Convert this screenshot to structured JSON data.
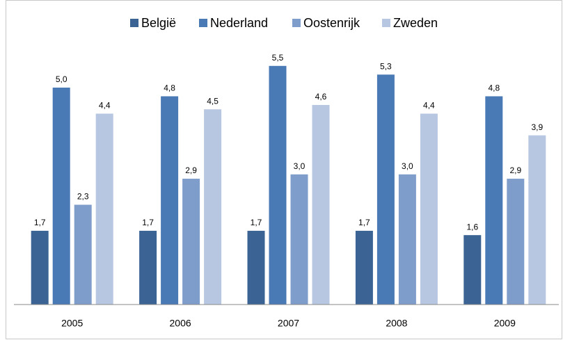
{
  "chart_data": {
    "type": "bar",
    "categories": [
      "2005",
      "2006",
      "2007",
      "2008",
      "2009"
    ],
    "series": [
      {
        "name": "België",
        "color": "#3b6394",
        "values": [
          1.7,
          1.7,
          1.7,
          1.7,
          1.6
        ],
        "value_labels": [
          "1,7",
          "1,7",
          "1,7",
          "1,7",
          "1,6"
        ]
      },
      {
        "name": "Nederland",
        "color": "#4a7ab6",
        "values": [
          5.0,
          4.8,
          5.5,
          5.3,
          4.8
        ],
        "value_labels": [
          "5,0",
          "4,8",
          "5,5",
          "5,3",
          "4,8"
        ]
      },
      {
        "name": "Oostenrijk",
        "color": "#7f9dca",
        "values": [
          2.3,
          2.9,
          3.0,
          3.0,
          2.9
        ],
        "value_labels": [
          "2,3",
          "2,9",
          "3,0",
          "3,0",
          "2,9"
        ]
      },
      {
        "name": "Zweden",
        "color": "#b7c7e1",
        "values": [
          4.4,
          4.5,
          4.6,
          4.4,
          3.9
        ],
        "value_labels": [
          "4,4",
          "4,5",
          "4,6",
          "4,4",
          "3,9"
        ]
      }
    ],
    "ylim": [
      0,
      6
    ],
    "legend": "top"
  }
}
